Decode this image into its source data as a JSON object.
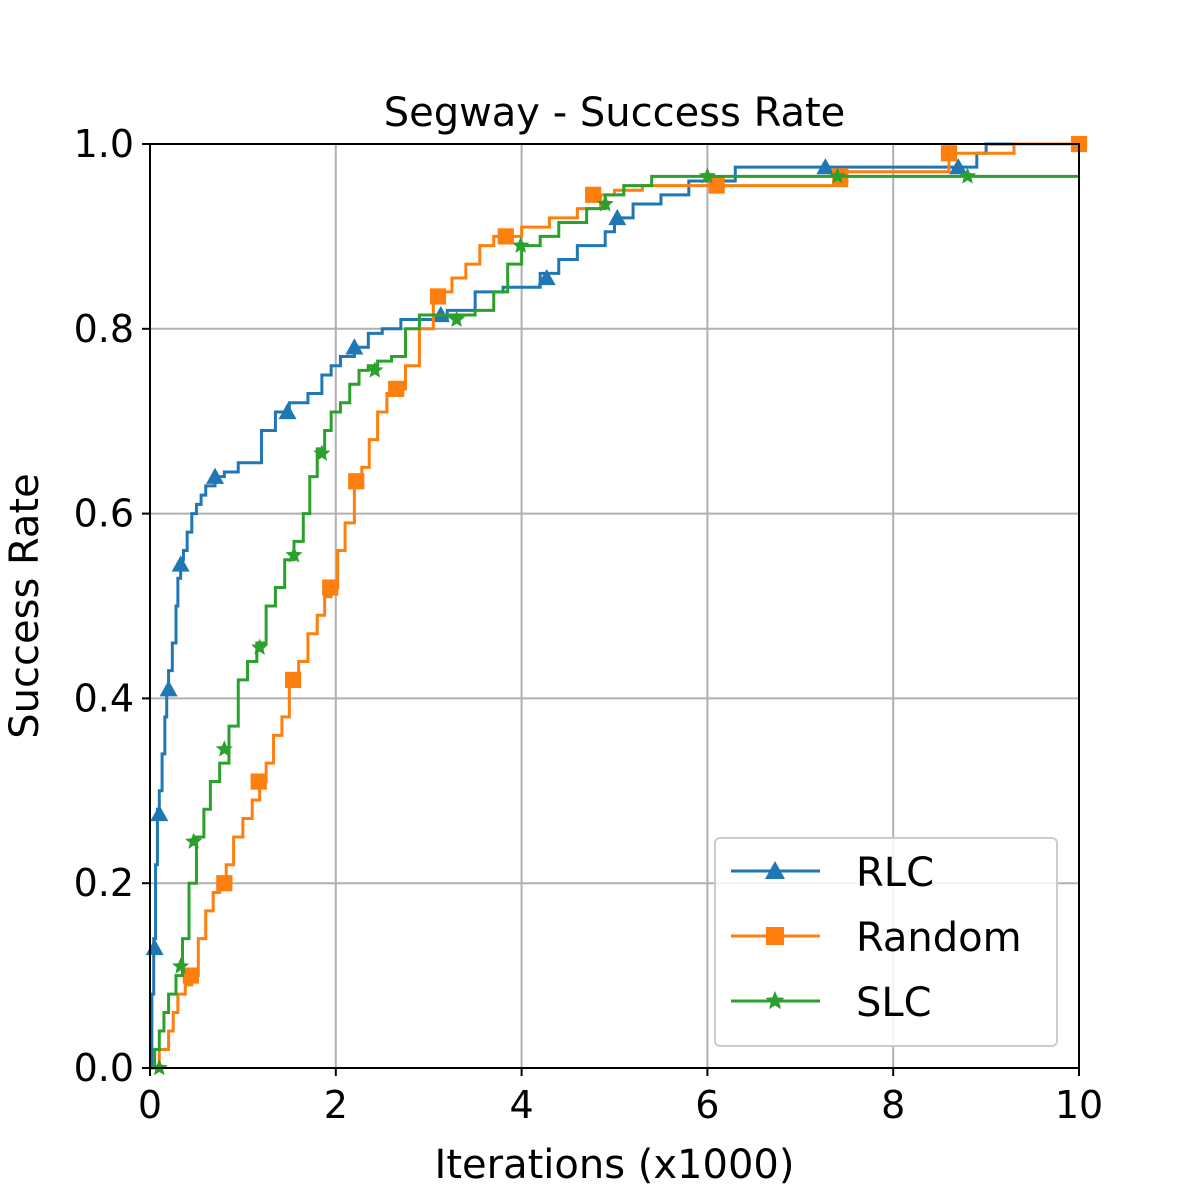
{
  "chart_data": {
    "type": "line",
    "title": "Segway - Success Rate",
    "xlabel": "Iterations (x1000)",
    "ylabel": "Success Rate",
    "xlim": [
      0,
      10
    ],
    "ylim": [
      0,
      1
    ],
    "xticks": [
      0,
      2,
      4,
      6,
      8,
      10
    ],
    "xtick_labels": [
      "0",
      "2",
      "4",
      "6",
      "8",
      "10"
    ],
    "yticks": [
      0,
      0.2,
      0.4,
      0.6,
      0.8,
      1.0
    ],
    "ytick_labels": [
      "0.0",
      "0.2",
      "0.4",
      "0.6",
      "0.8",
      "1.0"
    ],
    "grid": true,
    "legend_position": "lower-right",
    "series": [
      {
        "name": "RLC",
        "color": "#1f77b4",
        "marker": "triangle",
        "x": [
          0,
          0.02,
          0.04,
          0.06,
          0.08,
          0.1,
          0.13,
          0.16,
          0.18,
          0.2,
          0.24,
          0.28,
          0.3,
          0.33,
          0.36,
          0.4,
          0.45,
          0.5,
          0.55,
          0.6,
          0.7,
          0.8,
          0.95,
          1.2,
          1.35,
          1.5,
          1.7,
          1.85,
          1.95,
          2.05,
          2.2,
          2.35,
          2.5,
          2.7,
          3.0,
          3.2,
          3.5,
          3.8,
          4.2,
          4.4,
          4.6,
          4.9,
          5.0,
          5.2,
          5.5,
          5.8,
          6.3,
          7.0,
          8.0,
          8.9,
          9.0,
          10.0
        ],
        "y": [
          0.0,
          0.08,
          0.14,
          0.22,
          0.28,
          0.3,
          0.34,
          0.38,
          0.41,
          0.43,
          0.46,
          0.5,
          0.53,
          0.55,
          0.56,
          0.58,
          0.6,
          0.61,
          0.62,
          0.63,
          0.64,
          0.645,
          0.655,
          0.69,
          0.71,
          0.72,
          0.73,
          0.75,
          0.76,
          0.77,
          0.78,
          0.795,
          0.8,
          0.81,
          0.81,
          0.82,
          0.84,
          0.845,
          0.86,
          0.875,
          0.89,
          0.905,
          0.92,
          0.935,
          0.945,
          0.96,
          0.975,
          0.975,
          0.975,
          0.99,
          1.0,
          1.0
        ],
        "marker_x": [
          0.05,
          0.1,
          0.2,
          0.33,
          0.7,
          1.48,
          2.2,
          3.13,
          4.27,
          5.03,
          7.27,
          8.7
        ],
        "marker_y": [
          0.13,
          0.275,
          0.41,
          0.545,
          0.64,
          0.71,
          0.78,
          0.815,
          0.855,
          0.92,
          0.975,
          0.975
        ]
      },
      {
        "name": "Random",
        "color": "#ff7f0e",
        "marker": "square",
        "x": [
          0,
          0.1,
          0.2,
          0.25,
          0.3,
          0.38,
          0.45,
          0.52,
          0.6,
          0.68,
          0.75,
          0.82,
          0.9,
          1.0,
          1.1,
          1.18,
          1.25,
          1.33,
          1.42,
          1.5,
          1.6,
          1.7,
          1.8,
          1.88,
          1.95,
          2.02,
          2.1,
          2.2,
          2.28,
          2.36,
          2.45,
          2.55,
          2.65,
          2.75,
          2.9,
          3.05,
          3.15,
          3.25,
          3.4,
          3.55,
          3.7,
          3.85,
          4.0,
          4.3,
          4.6,
          4.85,
          5.0,
          5.3,
          5.8,
          6.1,
          7.3,
          7.5,
          8.6,
          9.3,
          10.0
        ],
        "y": [
          0.0,
          0.02,
          0.04,
          0.06,
          0.08,
          0.09,
          0.1,
          0.14,
          0.17,
          0.19,
          0.2,
          0.22,
          0.25,
          0.27,
          0.29,
          0.31,
          0.33,
          0.36,
          0.38,
          0.42,
          0.44,
          0.47,
          0.49,
          0.51,
          0.52,
          0.56,
          0.59,
          0.63,
          0.65,
          0.68,
          0.71,
          0.73,
          0.735,
          0.76,
          0.8,
          0.83,
          0.84,
          0.855,
          0.87,
          0.89,
          0.9,
          0.9,
          0.91,
          0.92,
          0.93,
          0.945,
          0.95,
          0.955,
          0.955,
          0.955,
          0.955,
          0.97,
          0.99,
          1.0,
          1.0
        ],
        "marker_x": [
          0.44,
          0.8,
          1.17,
          1.54,
          1.94,
          2.22,
          2.65,
          3.1,
          3.83,
          4.77,
          6.1,
          7.43,
          8.6,
          10.0
        ],
        "marker_y": [
          0.1,
          0.2,
          0.31,
          0.42,
          0.52,
          0.635,
          0.735,
          0.835,
          0.9,
          0.945,
          0.955,
          0.965,
          0.99,
          1.0
        ]
      },
      {
        "name": "SLC",
        "color": "#2ca02c",
        "marker": "star",
        "x": [
          0,
          0.05,
          0.1,
          0.15,
          0.2,
          0.28,
          0.35,
          0.42,
          0.5,
          0.58,
          0.65,
          0.75,
          0.85,
          0.95,
          1.05,
          1.15,
          1.25,
          1.35,
          1.45,
          1.55,
          1.65,
          1.72,
          1.8,
          1.88,
          1.95,
          2.05,
          2.15,
          2.25,
          2.35,
          2.45,
          2.6,
          2.75,
          2.9,
          3.1,
          3.3,
          3.5,
          3.7,
          3.85,
          4.0,
          4.2,
          4.4,
          4.7,
          4.9,
          5.1,
          5.4,
          6.0,
          6.5,
          7.5,
          8.8,
          10.0
        ],
        "y": [
          0.0,
          0.02,
          0.04,
          0.06,
          0.08,
          0.1,
          0.14,
          0.2,
          0.25,
          0.28,
          0.31,
          0.33,
          0.37,
          0.42,
          0.44,
          0.46,
          0.5,
          0.52,
          0.55,
          0.57,
          0.6,
          0.64,
          0.67,
          0.69,
          0.71,
          0.72,
          0.74,
          0.755,
          0.76,
          0.765,
          0.77,
          0.8,
          0.815,
          0.815,
          0.815,
          0.82,
          0.84,
          0.87,
          0.89,
          0.9,
          0.915,
          0.93,
          0.945,
          0.955,
          0.965,
          0.965,
          0.965,
          0.965,
          0.965,
          0.965
        ],
        "marker_x": [
          0.1,
          0.33,
          0.47,
          0.8,
          1.18,
          1.55,
          1.85,
          2.42,
          3.3,
          3.99,
          4.9,
          6.0,
          7.4,
          8.8
        ],
        "marker_y": [
          0.0,
          0.11,
          0.245,
          0.345,
          0.455,
          0.555,
          0.665,
          0.755,
          0.81,
          0.89,
          0.935,
          0.965,
          0.965,
          0.965
        ]
      }
    ]
  }
}
